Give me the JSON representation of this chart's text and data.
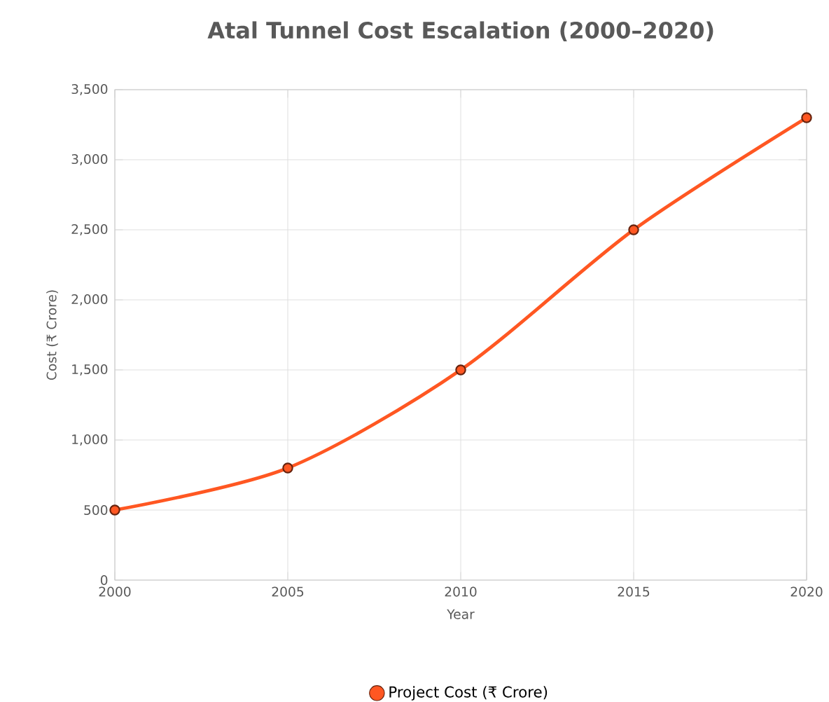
{
  "chart_data": {
    "type": "line",
    "title": "Atal Tunnel Cost Escalation (2000–2020)",
    "xlabel": "Year",
    "ylabel": "Cost (₹ Crore)",
    "x": [
      2000,
      2005,
      2010,
      2015,
      2020
    ],
    "series": [
      {
        "name": "Project Cost (₹ Crore)",
        "color": "#ff5722",
        "values": [
          500,
          800,
          1500,
          2500,
          3300
        ]
      }
    ],
    "xlim": [
      2000,
      2020
    ],
    "xticks": [
      2000,
      2005,
      2010,
      2015,
      2020
    ],
    "ylim": [
      0,
      3500
    ],
    "yticks": [
      {
        "value": 0,
        "label": "0"
      },
      {
        "value": 500,
        "label": "500"
      },
      {
        "value": 1000,
        "label": "1,000"
      },
      {
        "value": 1500,
        "label": "1,500"
      },
      {
        "value": 2000,
        "label": "2,000"
      },
      {
        "value": 2500,
        "label": "2,500"
      },
      {
        "value": 3000,
        "label": "3,000"
      },
      {
        "value": 3500,
        "label": "3,500"
      }
    ],
    "grid": true,
    "legend": "bottom",
    "marker": "circle",
    "line_style": "solid"
  }
}
